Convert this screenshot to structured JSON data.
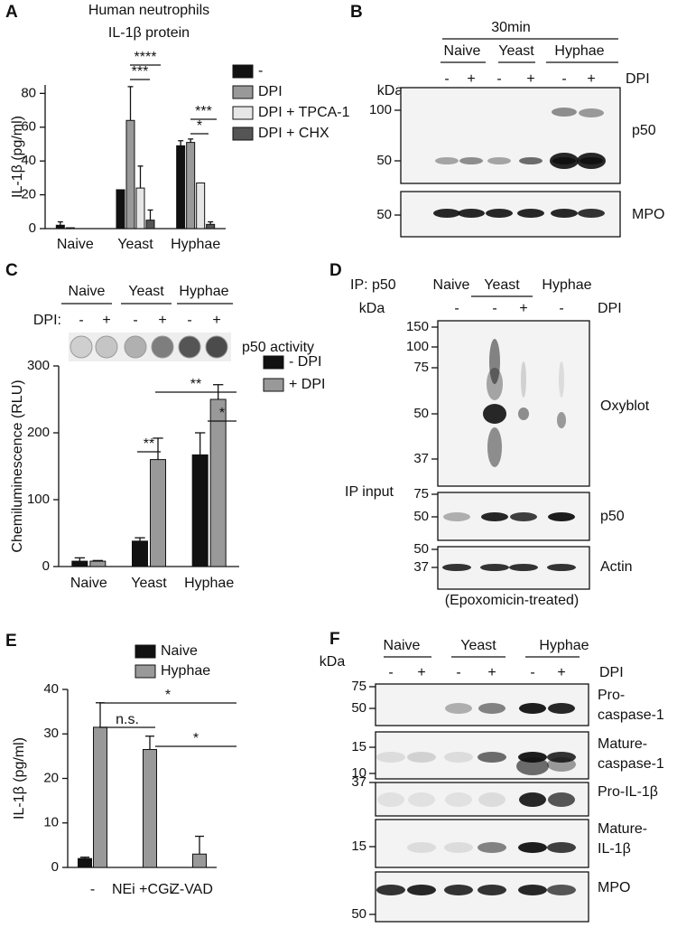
{
  "chart_data": [
    {
      "type": "bar",
      "panel": "A",
      "title": "Human neutrophils",
      "subtitle": "IL-1β protein",
      "y_label": "IL-1β (pg/ml)",
      "categories": [
        "Naive",
        "Yeast",
        "Hyphae"
      ],
      "series": [
        {
          "name": "-",
          "color": "#111111",
          "values": [
            2,
            23,
            49
          ],
          "errors": [
            2,
            null,
            3
          ]
        },
        {
          "name": "DPI",
          "color": "#999999",
          "values": [
            0.5,
            64,
            51
          ],
          "errors": [
            null,
            20,
            2
          ]
        },
        {
          "name": "DPI + TPCA-1",
          "color": "#e6e6e6",
          "values": [
            0,
            24,
            27
          ],
          "errors": [
            null,
            13,
            null
          ]
        },
        {
          "name": "DPI + CHX",
          "color": "#555555",
          "values": [
            0,
            5,
            2.5
          ],
          "errors": [
            null,
            6,
            1.5
          ]
        }
      ],
      "ylim": [
        0,
        85
      ],
      "yticks": [
        0,
        20,
        40,
        60,
        80
      ],
      "annotations": [
        "****",
        "***",
        "***",
        "*"
      ]
    },
    {
      "type": "bar",
      "panel": "C",
      "y_label": "Chemiluminescence (RLU)",
      "categories": [
        "Naive",
        "Yeast",
        "Hyphae"
      ],
      "series": [
        {
          "name": "- DPI",
          "color": "#111111",
          "values": [
            8,
            38,
            167
          ],
          "errors": [
            5,
            5,
            33
          ]
        },
        {
          "name": "+ DPI",
          "color": "#999999",
          "text_color": "#e31a1c",
          "values": [
            8,
            160,
            250
          ],
          "errors": [
            1,
            32,
            22
          ]
        }
      ],
      "ylim": [
        0,
        300
      ],
      "yticks": [
        0,
        100,
        200,
        300
      ],
      "annotations": [
        "**",
        "*",
        "**"
      ]
    },
    {
      "type": "bar",
      "panel": "E",
      "y_label": "IL-1β (pg/ml)",
      "categories": [
        "-",
        "NEi +CGi",
        "Z-VAD"
      ],
      "series": [
        {
          "name": "Naive",
          "color": "#111111",
          "values": [
            2,
            null,
            null
          ],
          "errors": [
            0.3,
            null,
            null
          ]
        },
        {
          "name": "Hyphae",
          "color": "#999999",
          "values": [
            31.5,
            26.5,
            3
          ],
          "errors": [
            5.5,
            3,
            4
          ]
        }
      ],
      "ylim": [
        0,
        40
      ],
      "yticks": [
        0,
        10,
        20,
        30,
        40
      ],
      "annotations": [
        "*",
        "n.s.",
        "*"
      ]
    }
  ],
  "dot_blot_C": {
    "groups": [
      "Naive",
      "Yeast",
      "Hyphae"
    ],
    "treatment": "DPI:",
    "lanes": [
      "-",
      "+",
      "-",
      "+",
      "-",
      "+"
    ],
    "lane_colors": [
      "#111111",
      "#111111",
      "#111111",
      "#e31a1c",
      "#111111",
      "#111111"
    ],
    "label": "p50 activity"
  },
  "blot_B": {
    "panel": "B",
    "time": "30min",
    "groups": [
      "Naive",
      "Yeast",
      "Hyphae"
    ],
    "lanes": [
      "-",
      "+",
      "-",
      "+",
      "-",
      "+"
    ],
    "lane_colors": [
      "#111111",
      "#111111",
      "#111111",
      "#e31a1c",
      "#111111",
      "#111111"
    ],
    "treatment": "DPI",
    "treatment_color": "#e31a1c",
    "unit": "kDa",
    "blots": [
      {
        "markers": [
          100,
          50
        ],
        "label": [
          "p50"
        ]
      },
      {
        "markers": [
          50
        ],
        "label": [
          "MPO"
        ]
      }
    ]
  },
  "blot_D": {
    "panel": "D",
    "ip": "IP: p50",
    "groups": [
      "Naive",
      "Yeast",
      "Hyphae"
    ],
    "lanes": [
      "-",
      "-",
      "+",
      "-"
    ],
    "lane_colors": [
      "#111111",
      "#111111",
      "#e31a1c",
      "#111111"
    ],
    "treatment": "DPI",
    "treatment_color": "#e31a1c",
    "unit": "kDa",
    "input_label": "IP input",
    "footnote": "(Epoxomicin-treated)",
    "blots": [
      {
        "markers": [
          150,
          100,
          75,
          50,
          37
        ],
        "label": [
          "Oxyblot"
        ]
      },
      {
        "markers": [
          75,
          50
        ],
        "label": [
          "p50"
        ]
      },
      {
        "markers": [
          50,
          37
        ],
        "label": [
          "Actin"
        ]
      }
    ]
  },
  "blot_F": {
    "panel": "F",
    "groups": [
      "Naive",
      "Yeast",
      "Hyphae"
    ],
    "lanes": [
      "-",
      "+",
      "-",
      "+",
      "-",
      "+"
    ],
    "lane_colors": [
      "#111111",
      "#111111",
      "#111111",
      "#111111",
      "#111111",
      "#111111"
    ],
    "treatment": "DPI",
    "treatment_color": "#111111",
    "unit": "kDa",
    "blots": [
      {
        "markers": [
          75,
          50
        ],
        "label": [
          "Pro-",
          "caspase-1"
        ]
      },
      {
        "markers": [
          15,
          10
        ],
        "label": [
          "Mature-",
          "caspase-1"
        ]
      },
      {
        "markers": [
          37
        ],
        "label": [
          "Pro-IL-1β"
        ]
      },
      {
        "markers": [
          15
        ],
        "label": [
          "Mature-",
          "IL-1β"
        ]
      },
      {
        "markers": [
          50
        ],
        "label": [
          "MPO"
        ]
      }
    ]
  }
}
